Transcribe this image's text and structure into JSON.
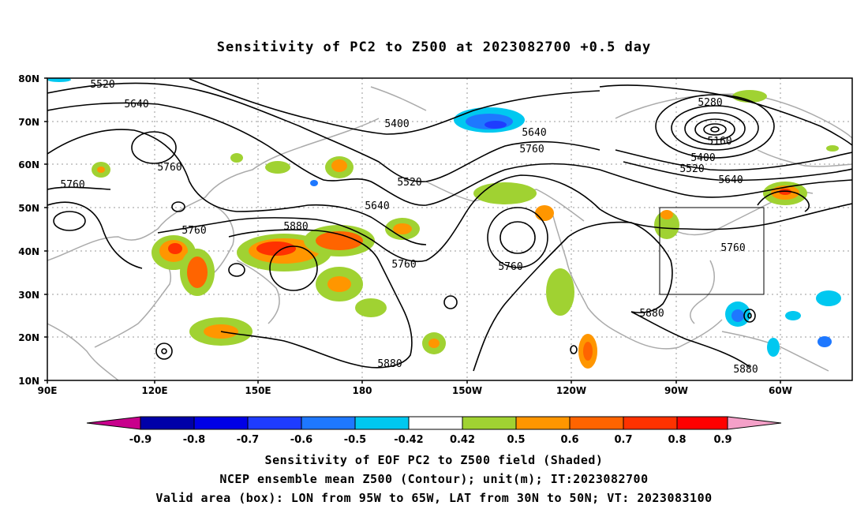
{
  "title": "Sensitivity of PC2 to Z500 at 2023082700 +0.5 day",
  "map": {
    "lat_labels": [
      "80N",
      "70N",
      "60N",
      "50N",
      "40N",
      "30N",
      "20N",
      "10N"
    ],
    "lon_labels": [
      "90E",
      "120E",
      "150E",
      "180",
      "150W",
      "120W",
      "90W",
      "60W"
    ],
    "contour_labels": [
      {
        "text": "5520"
      },
      {
        "text": "5640"
      },
      {
        "text": "5760"
      },
      {
        "text": "5760"
      },
      {
        "text": "5400"
      },
      {
        "text": "5640"
      },
      {
        "text": "5760"
      },
      {
        "text": "5520"
      },
      {
        "text": "5640"
      },
      {
        "text": "5760"
      },
      {
        "text": "5880"
      },
      {
        "text": "5760"
      },
      {
        "text": "5760"
      },
      {
        "text": "5880"
      },
      {
        "text": "5280"
      },
      {
        "text": "5160"
      },
      {
        "text": "5400"
      },
      {
        "text": "5520"
      },
      {
        "text": "5640"
      },
      {
        "text": "5760"
      },
      {
        "text": "5880"
      },
      {
        "text": "5880"
      }
    ],
    "valid_box": {
      "lon_range": [
        "95W",
        "65W"
      ],
      "lat_range": [
        "30N",
        "50N"
      ]
    }
  },
  "colorbar": {
    "labels": [
      "-0.9",
      "-0.8",
      "-0.7",
      "-0.6",
      "-0.5",
      "-0.42",
      "0.42",
      "0.5",
      "0.6",
      "0.7",
      "0.8",
      "0.9"
    ],
    "colors": [
      "#c8008c",
      "#0000a8",
      "#0000e6",
      "#1e3cff",
      "#1e78ff",
      "#00c8f0",
      "#ffffff",
      "#a0d232",
      "#ff9600",
      "#ff6400",
      "#ff3200",
      "#ff0000",
      "#f4a0c8"
    ]
  },
  "captions": {
    "line1": "Sensitivity of EOF PC2 to Z500 field (Shaded)",
    "line2": "NCEP ensemble mean Z500 (Contour); unit(m); IT:2023082700",
    "line3": "Valid area (box): LON from 95W to 65W, LAT from 30N to 50N; VT: 2023083100"
  }
}
